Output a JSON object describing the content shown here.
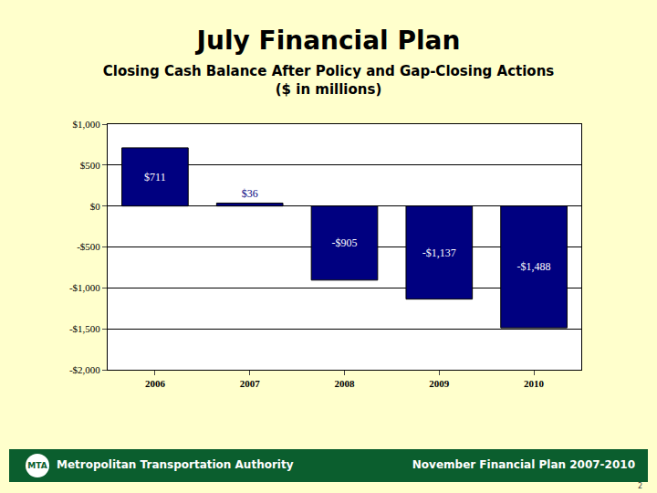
{
  "chart_data": {
    "type": "bar",
    "title": "July Financial Plan",
    "subtitle": [
      "Closing Cash Balance After Policy and Gap-Closing Actions",
      "($ in millions)"
    ],
    "categories": [
      "2006",
      "2007",
      "2008",
      "2009",
      "2010"
    ],
    "values": [
      711,
      36,
      -905,
      -1137,
      -1488
    ],
    "value_labels": [
      "$711",
      "$36",
      "-$905",
      "-$1,137",
      "-$1,488"
    ],
    "data_labels": true,
    "color": "#000080",
    "ylim": [
      -2000,
      1000
    ],
    "yticks": [
      {
        "value": 1000,
        "label": "$1,000"
      },
      {
        "value": 500,
        "label": "$500"
      },
      {
        "value": 0,
        "label": "$0"
      },
      {
        "value": -500,
        "label": "-$500"
      },
      {
        "value": -1000,
        "label": "-$1,000"
      },
      {
        "value": -1500,
        "label": "-$1,500"
      },
      {
        "value": -2000,
        "label": "-$2,000"
      }
    ],
    "grid": true
  },
  "footer": {
    "logo": "MTA",
    "left": "Metropolitan Transportation Authority",
    "right": "November Financial Plan 2007-2010",
    "page": "2"
  }
}
